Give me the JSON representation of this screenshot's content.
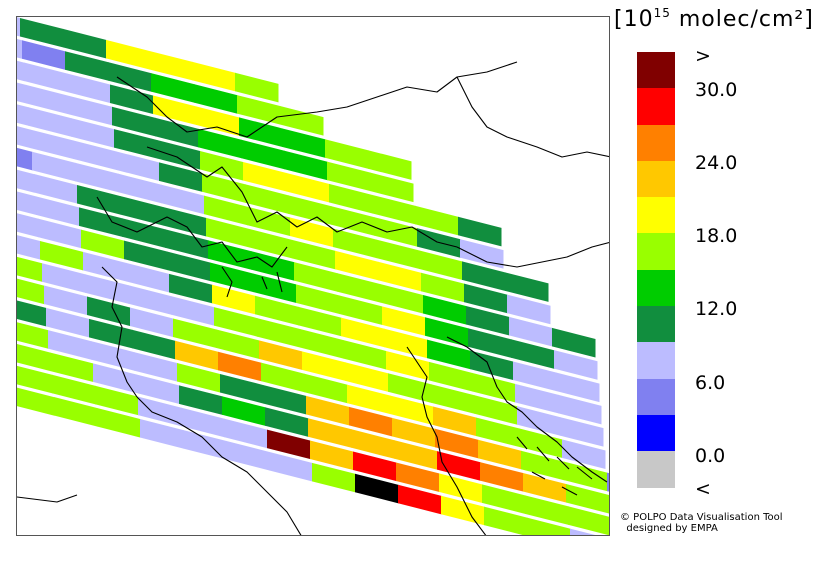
{
  "legend": {
    "unit_prefix": "[10",
    "unit_exp": "15",
    "unit_suffix": " molec/cm²]",
    "colors": [
      "#800000",
      "#ff0000",
      "#ff8000",
      "#ffc800",
      "#ffff00",
      "#99ff00",
      "#00cc00",
      "#118e3e",
      "#bcbcff",
      "#8080f0",
      "#0000ff",
      "#c8c8c8"
    ],
    "tick_labels": [
      ">",
      "30.0",
      "24.0",
      "18.0",
      "12.0",
      "6.0",
      "0.0",
      "<"
    ]
  },
  "credit": {
    "line1": "© POLPO Data Visualisation Tool",
    "line2": "  designed by EMPA"
  },
  "swath_levels": [
    [
      3,
      4,
      4,
      7,
      7,
      7,
      6
    ],
    [
      3,
      2,
      4,
      4,
      5,
      5,
      6,
      6
    ],
    [
      3,
      3,
      3,
      4,
      7,
      7,
      5,
      5,
      6,
      6
    ],
    [
      3,
      3,
      3,
      4,
      4,
      5,
      5,
      5,
      6,
      6
    ],
    [
      3,
      3,
      3,
      4,
      4,
      6,
      7,
      7,
      6,
      6,
      6,
      4
    ],
    [
      3,
      3,
      3,
      3,
      4,
      6,
      6,
      6,
      6,
      6,
      4,
      3
    ],
    [
      2,
      3,
      3,
      3,
      3,
      6,
      6,
      7,
      6,
      6,
      6,
      4,
      4
    ],
    [
      3,
      3,
      4,
      4,
      4,
      6,
      6,
      6,
      7,
      7,
      6,
      4,
      3
    ],
    [
      3,
      3,
      4,
      4,
      4,
      5,
      5,
      6,
      6,
      6,
      5,
      4,
      3,
      4
    ],
    [
      3,
      3,
      6,
      4,
      4,
      5,
      5,
      6,
      6,
      7,
      5,
      4,
      4,
      3
    ],
    [
      3,
      6,
      3,
      3,
      4,
      7,
      6,
      6,
      7,
      7,
      5,
      4,
      3,
      3
    ],
    [
      6,
      3,
      3,
      3,
      3,
      6,
      6,
      6,
      6,
      7,
      6,
      6,
      3,
      3
    ],
    [
      6,
      3,
      4,
      3,
      6,
      6,
      8,
      7,
      7,
      6,
      6,
      6,
      3,
      3
    ],
    [
      4,
      3,
      4,
      4,
      8,
      9,
      6,
      6,
      7,
      7,
      8,
      6,
      6,
      3
    ],
    [
      6,
      3,
      3,
      3,
      6,
      4,
      4,
      8,
      9,
      8,
      9,
      8,
      6,
      6,
      2
    ],
    [
      6,
      6,
      3,
      3,
      4,
      5,
      4,
      8,
      8,
      8,
      10,
      9,
      8,
      6,
      2
    ],
    [
      6,
      6,
      6,
      3,
      3,
      3,
      11,
      8,
      10,
      9,
      7,
      6,
      6,
      6,
      2
    ],
    [
      6,
      6,
      6,
      3,
      3,
      3,
      3,
      6,
      12,
      10,
      7,
      6,
      6,
      3
    ]
  ]
}
